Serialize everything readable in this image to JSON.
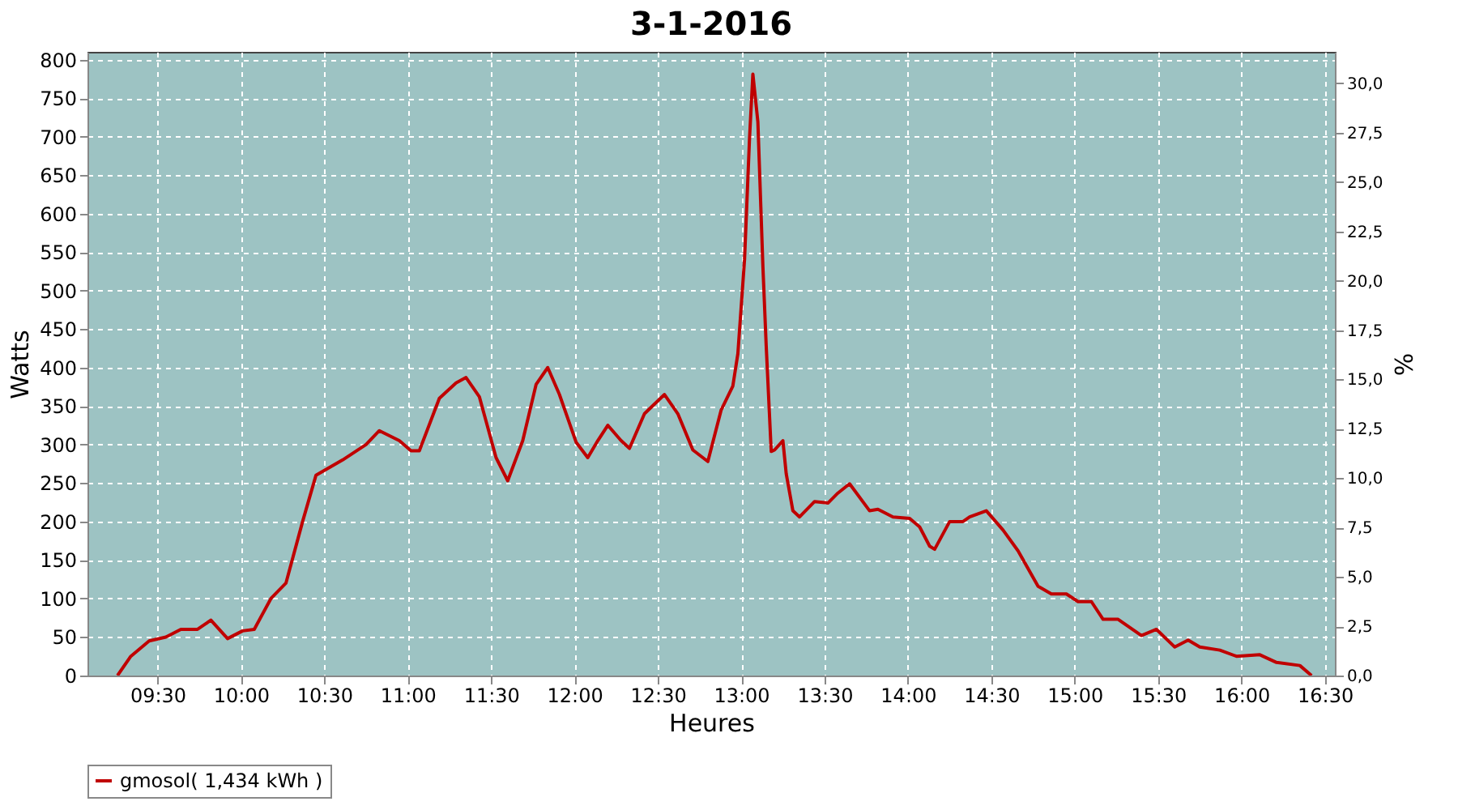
{
  "chart_data": {
    "type": "line",
    "title": "3-1-2016",
    "xlabel": "Heures",
    "ylabel": "Watts",
    "y2label": "%",
    "x": [
      9.26,
      9.34,
      9.45,
      9.55,
      9.64,
      9.74,
      9.82,
      9.92,
      10.01,
      10.08,
      10.18,
      10.27,
      10.37,
      10.45,
      10.61,
      10.75,
      10.83,
      10.95,
      11.02,
      11.07,
      11.19,
      11.29,
      11.35,
      11.43,
      11.53,
      11.6,
      11.69,
      11.77,
      11.84,
      11.91,
      12.01,
      12.08,
      12.14,
      12.2,
      12.28,
      12.33,
      12.42,
      12.54,
      12.62,
      12.71,
      12.8,
      12.88,
      12.95,
      12.98,
      13.02,
      13.05,
      13.07,
      13.1,
      13.13,
      13.15,
      13.18,
      13.2,
      13.25,
      13.27,
      13.31,
      13.35,
      13.44,
      13.52,
      13.58,
      13.65,
      13.77,
      13.82,
      13.91,
      14.01,
      14.07,
      14.13,
      14.16,
      14.25,
      14.33,
      14.37,
      14.47,
      14.57,
      14.66,
      14.78,
      14.86,
      14.95,
      15.02,
      15.1,
      15.17,
      15.26,
      15.4,
      15.49,
      15.6,
      15.68,
      15.75,
      15.87,
      15.97,
      16.11,
      16.21,
      16.35,
      16.42
    ],
    "series": [
      {
        "name": "gmosol( 1,434 kWh )",
        "color": "#c00000",
        "values": [
          0,
          25,
          45,
          50,
          60,
          60,
          72,
          48,
          58,
          60,
          100,
          120,
          200,
          260,
          280,
          300,
          318,
          305,
          292,
          292,
          360,
          380,
          387,
          362,
          283,
          253,
          305,
          378,
          400,
          365,
          303,
          283,
          305,
          325,
          305,
          295,
          340,
          365,
          340,
          293,
          278,
          345,
          376,
          418,
          540,
          698,
          781,
          719,
          532,
          428,
          291,
          293,
          305,
          262,
          214,
          206,
          226,
          224,
          237,
          249,
          214,
          216,
          206,
          204,
          193,
          168,
          164,
          200,
          200,
          206,
          214,
          189,
          162,
          116,
          106,
          106,
          96,
          96,
          73,
          73,
          52,
          60,
          37,
          46,
          37,
          33,
          25,
          27,
          17,
          13,
          0
        ]
      }
    ],
    "xlim": [
      9.08,
      16.56
    ],
    "xticks": [
      {
        "value": 9.5,
        "label": "09:30"
      },
      {
        "value": 10,
        "label": "10:00"
      },
      {
        "value": 10.5,
        "label": "10:30"
      },
      {
        "value": 11,
        "label": "11:00"
      },
      {
        "value": 11.5,
        "label": "11:30"
      },
      {
        "value": 12,
        "label": "12:00"
      },
      {
        "value": 12.5,
        "label": "12:30"
      },
      {
        "value": 13,
        "label": "13:00"
      },
      {
        "value": 13.5,
        "label": "13:30"
      },
      {
        "value": 14,
        "label": "14:00"
      },
      {
        "value": 14.5,
        "label": "14:30"
      },
      {
        "value": 15,
        "label": "15:00"
      },
      {
        "value": 15.5,
        "label": "15:30"
      },
      {
        "value": 16,
        "label": "16:00"
      },
      {
        "value": 16.5,
        "label": "16:30"
      }
    ],
    "ylim": [
      0,
      810
    ],
    "yticks": [
      0,
      50,
      100,
      150,
      200,
      250,
      300,
      350,
      400,
      450,
      500,
      550,
      600,
      650,
      700,
      750,
      800
    ],
    "y2lim": [
      0,
      31.6
    ],
    "y2ticks": [
      {
        "value": 0,
        "label": "0,0"
      },
      {
        "value": 2.5,
        "label": "2,5"
      },
      {
        "value": 5,
        "label": "5,0"
      },
      {
        "value": 7.5,
        "label": "7,5"
      },
      {
        "value": 10,
        "label": "10,0"
      },
      {
        "value": 12.5,
        "label": "12,5"
      },
      {
        "value": 15,
        "label": "15,0"
      },
      {
        "value": 17.5,
        "label": "17,5"
      },
      {
        "value": 20,
        "label": "20,0"
      },
      {
        "value": 22.5,
        "label": "22,5"
      },
      {
        "value": 25,
        "label": "25,0"
      },
      {
        "value": 27.5,
        "label": "27,5"
      },
      {
        "value": 30,
        "label": "30,0"
      }
    ],
    "grid": true,
    "legend": "bottom",
    "marker": "none",
    "line_style": "solid"
  }
}
